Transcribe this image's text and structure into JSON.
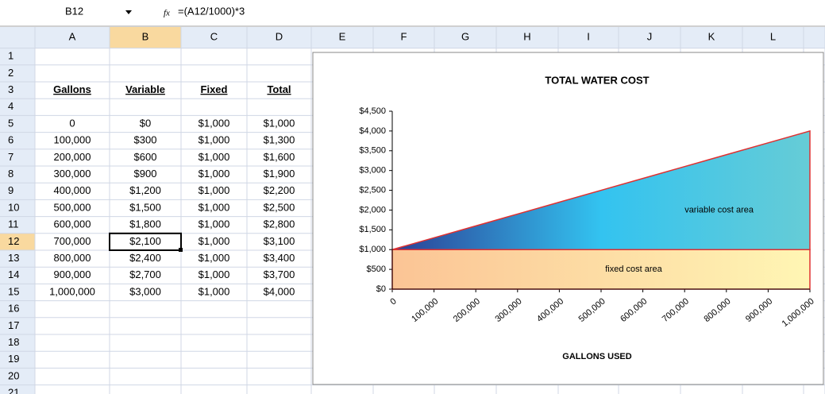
{
  "sheet": {
    "name_box": "B12",
    "fx": "fx",
    "formula": "=(A12/1000)*3",
    "columns": [
      "A",
      "B",
      "C",
      "D",
      "E",
      "F",
      "G",
      "H",
      "I",
      "J",
      "K",
      "L"
    ],
    "row_numbers": [
      1,
      2,
      3,
      4,
      5,
      6,
      7,
      8,
      9,
      10,
      11,
      12,
      13,
      14,
      15,
      16,
      17,
      18,
      19,
      20,
      21
    ],
    "header_row": [
      "Gallons",
      "Variable",
      "Fixed",
      "Total"
    ],
    "rows": [
      [
        "0",
        "$0",
        "$1,000",
        "$1,000"
      ],
      [
        "100,000",
        "$300",
        "$1,000",
        "$1,300"
      ],
      [
        "200,000",
        "$600",
        "$1,000",
        "$1,600"
      ],
      [
        "300,000",
        "$900",
        "$1,000",
        "$1,900"
      ],
      [
        "400,000",
        "$1,200",
        "$1,000",
        "$2,200"
      ],
      [
        "500,000",
        "$1,500",
        "$1,000",
        "$2,500"
      ],
      [
        "600,000",
        "$1,800",
        "$1,000",
        "$2,800"
      ],
      [
        "700,000",
        "$2,100",
        "$1,000",
        "$3,100"
      ],
      [
        "800,000",
        "$2,400",
        "$1,000",
        "$3,400"
      ],
      [
        "900,000",
        "$2,700",
        "$1,000",
        "$3,700"
      ],
      [
        "1,000,000",
        "$3,000",
        "$1,000",
        "$4,000"
      ]
    ]
  },
  "chart_data": {
    "type": "area",
    "stacked": true,
    "title": "TOTAL WATER COST",
    "x_label": "GALLONS USED",
    "x": [
      0,
      100000,
      200000,
      300000,
      400000,
      500000,
      600000,
      700000,
      800000,
      900000,
      1000000
    ],
    "series": [
      {
        "name": "Fixed",
        "colors": [
          "#fbc495",
          "#fff6b4"
        ],
        "values": [
          1000,
          1000,
          1000,
          1000,
          1000,
          1000,
          1000,
          1000,
          1000,
          1000,
          1000
        ]
      },
      {
        "name": "Variable",
        "colors": [
          "#2b3f95",
          "#33c3f0",
          "#66ccd6"
        ],
        "values": [
          0,
          300,
          600,
          900,
          1200,
          1500,
          1800,
          2100,
          2400,
          2700,
          3000
        ]
      }
    ],
    "outline_color": "#e03030",
    "annotations": [
      {
        "text": "variable cost area",
        "x": 700000,
        "y": 2000
      },
      {
        "text": "fixed cost area",
        "x": 510000,
        "y": 500
      }
    ],
    "xlim": [
      0,
      1000000
    ],
    "xticks": [
      0,
      {
        "value": 100000,
        "label": "100,000"
      },
      {
        "value": 200000,
        "label": "200,000"
      },
      {
        "value": 300000,
        "label": "300,000"
      },
      {
        "value": 400000,
        "label": "400,000"
      },
      {
        "value": 500000,
        "label": "500,000"
      },
      {
        "value": 600000,
        "label": "600,000"
      },
      {
        "value": 700000,
        "label": "700,000"
      },
      {
        "value": 800000,
        "label": "800,000"
      },
      {
        "value": 900000,
        "label": "900,000"
      },
      {
        "value": 1000000,
        "label": "1,000,000"
      }
    ],
    "ylim": [
      0,
      4500
    ],
    "yticks": [
      {
        "value": 0,
        "label": "$0"
      },
      {
        "value": 500,
        "label": "$500"
      },
      {
        "value": 1000,
        "label": "$1,000"
      },
      {
        "value": 1500,
        "label": "$1,500"
      },
      {
        "value": 2000,
        "label": "$2,000"
      },
      {
        "value": 2500,
        "label": "$2,500"
      },
      {
        "value": 3000,
        "label": "$3,000"
      },
      {
        "value": 3500,
        "label": "$3,500"
      },
      {
        "value": 4000,
        "label": "$4,000"
      },
      {
        "value": 4500,
        "label": "$4,500"
      }
    ]
  }
}
